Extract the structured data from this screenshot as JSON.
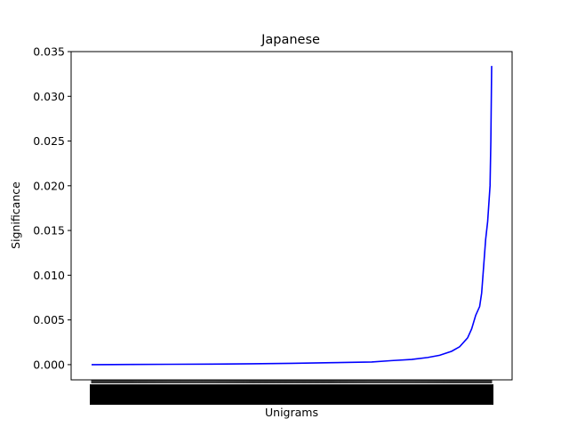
{
  "chart_data": {
    "type": "line",
    "title": "Japanese",
    "xlabel": "Unigrams",
    "ylabel": "Significance",
    "ylim": [
      -0.0017,
      0.035
    ],
    "yticks": [
      0.0,
      0.005,
      0.01,
      0.015,
      0.02,
      0.025,
      0.03,
      0.035
    ],
    "ytick_labels": [
      "0.000",
      "0.005",
      "0.010",
      "0.015",
      "0.020",
      "0.025",
      "0.030",
      "0.035"
    ],
    "x_tick_count": 450,
    "grid": false,
    "legend": "none",
    "series": [
      {
        "color": "#0000ff",
        "x": [
          0,
          0.1,
          0.2,
          0.3,
          0.4,
          0.5,
          0.6,
          0.65,
          0.7,
          0.75,
          0.8,
          0.84,
          0.87,
          0.9,
          0.92,
          0.94,
          0.95,
          0.96,
          0.97,
          0.975,
          0.98,
          0.985,
          0.99,
          0.993,
          0.996,
          0.998,
          1.0
        ],
        "y": [
          0.0,
          2e-05,
          4e-05,
          6e-05,
          0.0001,
          0.00015,
          0.00022,
          0.00026,
          0.0003,
          0.00045,
          0.00058,
          0.0008,
          0.00105,
          0.0015,
          0.002,
          0.003,
          0.004,
          0.0055,
          0.0065,
          0.008,
          0.011,
          0.014,
          0.016,
          0.018,
          0.02,
          0.025,
          0.0334
        ]
      }
    ]
  }
}
